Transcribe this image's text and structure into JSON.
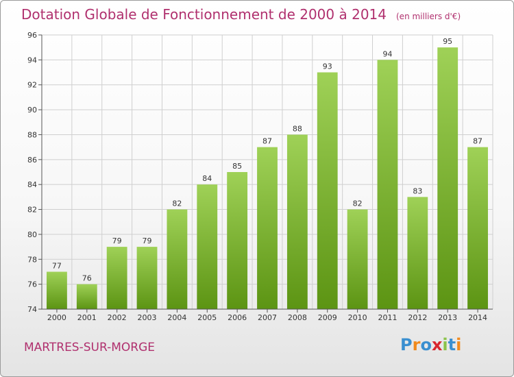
{
  "title": "Dotation Globale de Fonctionnement de 2000 à 2014",
  "unit": "(en milliers d'€)",
  "commune": "MARTRES-SUR-MORGE",
  "logo": {
    "letters": [
      "P",
      "r",
      "o",
      "x",
      "i",
      "t",
      "i"
    ],
    "colors": [
      "#3a8fd0",
      "#f08a1e",
      "#3a8fd0",
      "#d8262f",
      "#8bc34a",
      "#3a8fd0",
      "#f08a1e"
    ]
  },
  "colors": {
    "bar_top": "#9fd157",
    "bar_bottom": "#5c9413",
    "title": "#b0306e",
    "grid": "#cfcfcf"
  },
  "chart_data": {
    "type": "bar",
    "title": "Dotation Globale de Fonctionnement de 2000 à 2014",
    "subtitle": "(en milliers d'€)",
    "categories": [
      "2000",
      "2001",
      "2002",
      "2003",
      "2004",
      "2005",
      "2006",
      "2007",
      "2008",
      "2009",
      "2010",
      "2011",
      "2012",
      "2013",
      "2014"
    ],
    "values": [
      77,
      76,
      79,
      79,
      82,
      84,
      85,
      87,
      88,
      93,
      82,
      94,
      83,
      95,
      87
    ],
    "ylim": [
      74,
      96
    ],
    "yticks": [
      74,
      76,
      78,
      80,
      82,
      84,
      86,
      88,
      90,
      92,
      94,
      96
    ],
    "grid": true,
    "xlabel": "",
    "ylabel": ""
  }
}
